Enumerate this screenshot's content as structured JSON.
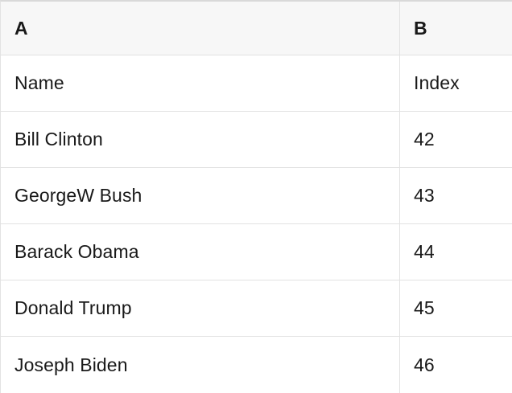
{
  "table": {
    "column_letters": [
      {
        "label": "A"
      },
      {
        "label": "B"
      }
    ],
    "field_row": {
      "name": "Name",
      "index": "Index"
    },
    "rows": [
      {
        "name": "Bill Clinton",
        "index": "42"
      },
      {
        "name": "GeorgeW Bush",
        "index": "43"
      },
      {
        "name": "Barack Obama",
        "index": "44"
      },
      {
        "name": "Donald Trump",
        "index": "45"
      },
      {
        "name": "Joseph Biden",
        "index": "46"
      }
    ],
    "colors": {
      "header_bg": "#f7f7f7",
      "border": "#e2e2e2",
      "top_border": "#d9d9d9",
      "text": "#191919",
      "cell_bg": "#ffffff"
    }
  }
}
